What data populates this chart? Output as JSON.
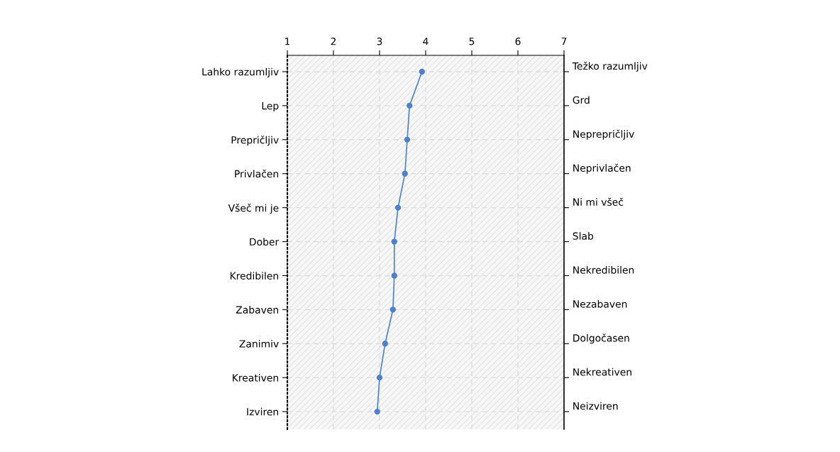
{
  "chart_data": {
    "type": "line",
    "orientation": "horizontal",
    "categories": [
      "Lahko razumljiv",
      "Lep",
      "Prepričljiv",
      "Privlačen",
      "Všeč mi je",
      "Dober",
      "Kredibilen",
      "Zabaven",
      "Zanimiv",
      "Kreativen",
      "Izviren"
    ],
    "y2_categories": [
      "Težko razumljiv",
      "Grd",
      "Neprepričljiv",
      "Neprivlačen",
      "Ni mi všeč",
      "Slab",
      "Nekredibilen",
      "Nezabaven",
      "Dolgočasen",
      "Nekreativen",
      "Neizviren"
    ],
    "series": [
      {
        "color": "#4f81c7",
        "values": [
          3.92,
          3.65,
          3.6,
          3.55,
          3.4,
          3.32,
          3.32,
          3.29,
          3.12,
          3.0,
          2.95
        ]
      }
    ],
    "xlim": [
      1,
      7
    ],
    "xticks": [
      1,
      2,
      3,
      4,
      5,
      6,
      7
    ],
    "grid": true,
    "marker": "circle",
    "line_style": "solid"
  }
}
